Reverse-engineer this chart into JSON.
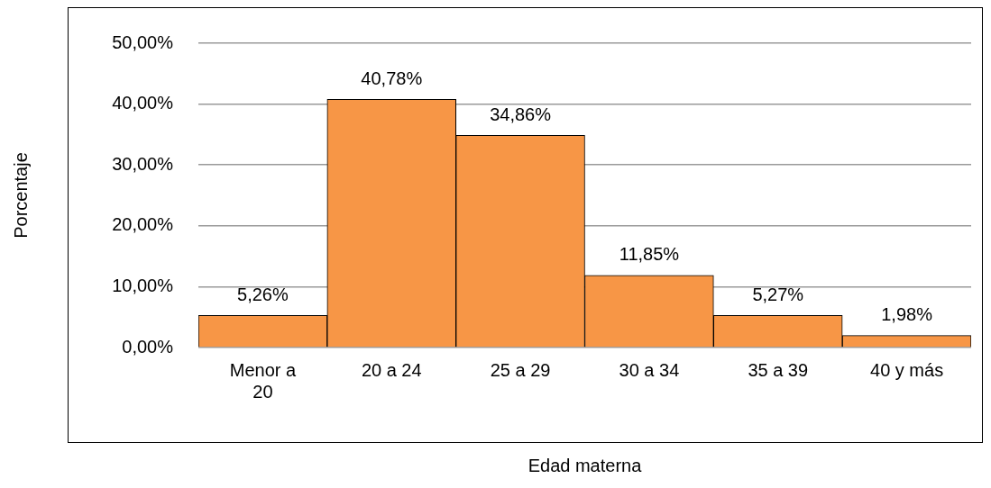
{
  "chart_data": {
    "type": "bar",
    "xlabel": "Edad materna",
    "ylabel": "Porcentaje",
    "categories": [
      "Menor a 20",
      "20 a 24",
      "25 a 29",
      "30 a 34",
      "35 a 39",
      "40 y más"
    ],
    "values": [
      5.26,
      40.78,
      34.86,
      11.85,
      5.27,
      1.98
    ],
    "value_labels": [
      "5,26%",
      "40,78%",
      "34,86%",
      "11,85%",
      "5,27%",
      "1,98%"
    ],
    "color": "#f79646",
    "ylim": [
      0,
      50
    ],
    "yticks": [
      {
        "value": 0,
        "label": "0,00%"
      },
      {
        "value": 10,
        "label": "10,00%"
      },
      {
        "value": 20,
        "label": "20,00%"
      },
      {
        "value": 30,
        "label": "30,00%"
      },
      {
        "value": 40,
        "label": "40,00%"
      },
      {
        "value": 50,
        "label": "50,00%"
      }
    ],
    "grid": "y",
    "legend": false
  }
}
